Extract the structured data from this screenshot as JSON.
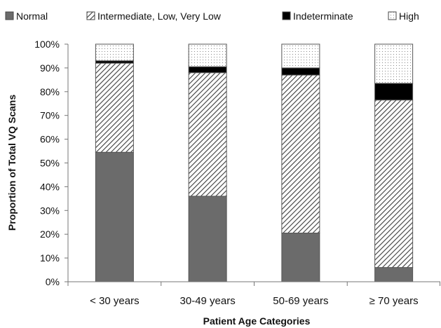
{
  "chart_data": {
    "type": "bar",
    "stacked": true,
    "categories": [
      "< 30 years",
      "30-49 years",
      "50-69 years",
      "≥ 70 years"
    ],
    "series": [
      {
        "name": "Normal",
        "values": [
          54.5,
          36,
          20.5,
          6
        ],
        "color": "#6b6b6b",
        "pattern": "solid"
      },
      {
        "name": "Intermediate, Low, Very Low",
        "values": [
          37.5,
          52,
          66.5,
          70.5
        ],
        "color": "#ffffff",
        "pattern": "diagonal-hatch"
      },
      {
        "name": "Indeterminate",
        "values": [
          1,
          2.5,
          3,
          7
        ],
        "color": "#000000",
        "pattern": "solid"
      },
      {
        "name": "High",
        "values": [
          7,
          9.5,
          10,
          16.5
        ],
        "color": "#ffffff",
        "pattern": "dotted"
      }
    ],
    "y_ticks": [
      "0%",
      "10%",
      "20%",
      "30%",
      "40%",
      "50%",
      "60%",
      "70%",
      "80%",
      "90%",
      "100%"
    ],
    "ylim": [
      0,
      100
    ],
    "xlabel": "Patient Age Categories",
    "ylabel": "Proportion of Total VQ Scans",
    "legend_position": "top",
    "grid": false
  }
}
